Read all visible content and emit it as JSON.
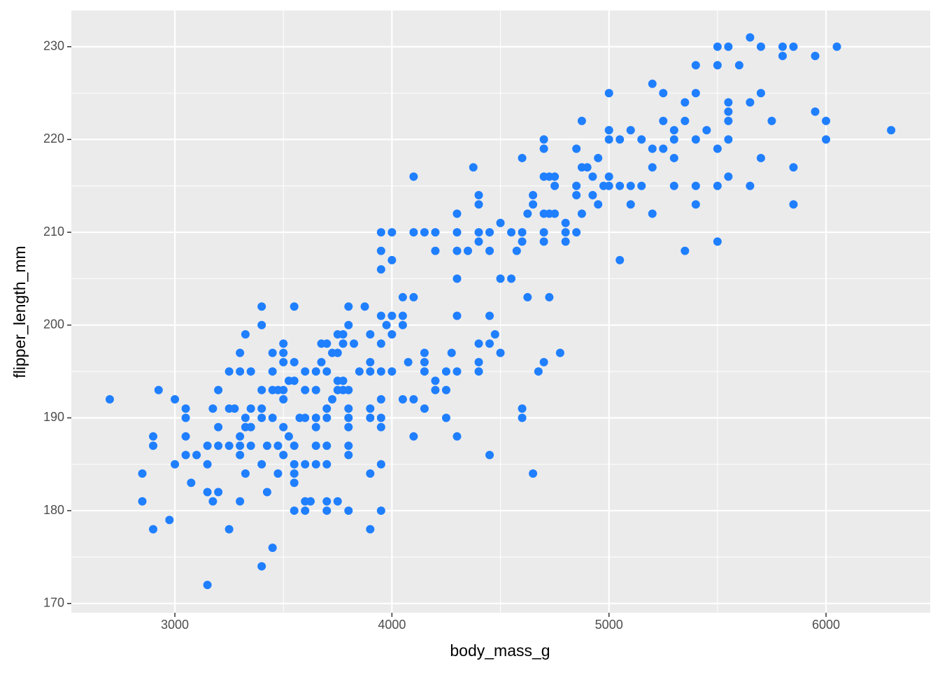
{
  "chart_data": {
    "type": "scatter",
    "xlabel": "body_mass_g",
    "ylabel": "flipper_length_mm",
    "color": "#1f7fff",
    "grid": true,
    "minor_grid": true,
    "background": "#ebebeb",
    "xlim": [
      2523,
      6480
    ],
    "ylim": [
      169.0,
      233.9
    ],
    "xticks": [
      3000,
      4000,
      5000,
      6000
    ],
    "yticks": [
      170,
      180,
      190,
      200,
      210,
      220,
      230
    ],
    "x": [
      2700,
      2850,
      2850,
      2900,
      2900,
      2900,
      2925,
      2975,
      3000,
      3000,
      3050,
      3050,
      3050,
      3050,
      3075,
      3100,
      3150,
      3150,
      3150,
      3150,
      3175,
      3175,
      3200,
      3200,
      3200,
      3200,
      3250,
      3250,
      3250,
      3250,
      3275,
      3300,
      3300,
      3300,
      3300,
      3300,
      3300,
      3325,
      3325,
      3325,
      3325,
      3350,
      3350,
      3350,
      3350,
      3400,
      3400,
      3400,
      3400,
      3400,
      3400,
      3400,
      3425,
      3425,
      3450,
      3450,
      3450,
      3450,
      3450,
      3475,
      3475,
      3475,
      3500,
      3500,
      3500,
      3500,
      3500,
      3500,
      3500,
      3525,
      3525,
      3550,
      3550,
      3550,
      3550,
      3550,
      3550,
      3550,
      3550,
      3575,
      3600,
      3600,
      3600,
      3600,
      3600,
      3600,
      3625,
      3650,
      3650,
      3650,
      3650,
      3650,
      3650,
      3675,
      3675,
      3700,
      3700,
      3700,
      3700,
      3700,
      3700,
      3700,
      3700,
      3725,
      3725,
      3750,
      3750,
      3750,
      3750,
      3750,
      3775,
      3775,
      3775,
      3775,
      3800,
      3800,
      3800,
      3800,
      3800,
      3800,
      3800,
      3800,
      3800,
      3825,
      3850,
      3875,
      3900,
      3900,
      3900,
      3900,
      3900,
      3900,
      3900,
      3950,
      3950,
      3950,
      3950,
      3950,
      3950,
      3950,
      3950,
      3950,
      3950,
      3950,
      3975,
      4000,
      4000,
      4000,
      4000,
      4000,
      4050,
      4050,
      4050,
      4050,
      4075,
      4100,
      4100,
      4100,
      4100,
      4100,
      4150,
      4150,
      4150,
      4150,
      4150,
      4200,
      4200,
      4200,
      4200,
      4250,
      4250,
      4250,
      4275,
      4300,
      4300,
      4300,
      4300,
      4300,
      4300,
      4300,
      4350,
      4375,
      4400,
      4400,
      4400,
      4400,
      4400,
      4400,
      4400,
      4450,
      4450,
      4450,
      4450,
      4450,
      4475,
      4500,
      4500,
      4500,
      4550,
      4550,
      4575,
      4600,
      4600,
      4600,
      4600,
      4600,
      4625,
      4625,
      4650,
      4650,
      4650,
      4675,
      4700,
      4700,
      4700,
      4700,
      4700,
      4700,
      4700,
      4725,
      4725,
      4725,
      4750,
      4750,
      4750,
      4775,
      4800,
      4800,
      4800,
      4850,
      4850,
      4850,
      4850,
      4875,
      4875,
      4875,
      4900,
      4925,
      4925,
      4950,
      4950,
      4975,
      5000,
      5000,
      5000,
      5000,
      5000,
      5050,
      5050,
      5050,
      5100,
      5100,
      5100,
      5150,
      5150,
      5200,
      5200,
      5200,
      5200,
      5250,
      5250,
      5250,
      5300,
      5300,
      5300,
      5300,
      5350,
      5350,
      5350,
      5400,
      5400,
      5400,
      5400,
      5400,
      5450,
      5500,
      5500,
      5500,
      5500,
      5500,
      5550,
      5550,
      5550,
      5550,
      5550,
      5550,
      5600,
      5650,
      5650,
      5650,
      5700,
      5700,
      5700,
      5750,
      5800,
      5800,
      5850,
      5850,
      5850,
      5950,
      5950,
      6000,
      6000,
      6050,
      6300
    ],
    "values": [
      192,
      184,
      181,
      188,
      187,
      178,
      193,
      179,
      192,
      185,
      191,
      190,
      188,
      186,
      183,
      186,
      187,
      185,
      182,
      172,
      191,
      181,
      193,
      189,
      187,
      182,
      195,
      191,
      187,
      178,
      191,
      197,
      195,
      188,
      187,
      186,
      181,
      199,
      190,
      189,
      184,
      195,
      191,
      189,
      187,
      202,
      200,
      193,
      191,
      190,
      185,
      174,
      187,
      182,
      197,
      195,
      193,
      190,
      176,
      193,
      187,
      184,
      198,
      197,
      196,
      193,
      192,
      189,
      186,
      194,
      188,
      202,
      196,
      194,
      187,
      185,
      184,
      183,
      180,
      190,
      195,
      193,
      190,
      185,
      181,
      180,
      181,
      195,
      193,
      190,
      189,
      187,
      185,
      198,
      196,
      198,
      195,
      191,
      190,
      187,
      185,
      181,
      180,
      197,
      192,
      199,
      197,
      194,
      193,
      181,
      199,
      198,
      194,
      193,
      202,
      200,
      193,
      191,
      190,
      189,
      187,
      186,
      180,
      198,
      195,
      202,
      199,
      196,
      195,
      191,
      190,
      184,
      178,
      210,
      208,
      206,
      201,
      198,
      195,
      192,
      190,
      189,
      185,
      180,
      200,
      210,
      207,
      201,
      199,
      195,
      203,
      201,
      200,
      192,
      196,
      216,
      210,
      203,
      192,
      188,
      210,
      197,
      196,
      195,
      191,
      210,
      208,
      194,
      193,
      195,
      193,
      190,
      197,
      212,
      210,
      208,
      205,
      201,
      195,
      188,
      208,
      217,
      214,
      213,
      210,
      209,
      198,
      196,
      195,
      210,
      208,
      201,
      198,
      186,
      199,
      211,
      205,
      197,
      210,
      205,
      208,
      218,
      210,
      209,
      191,
      190,
      203,
      212,
      214,
      213,
      184,
      195,
      220,
      219,
      216,
      212,
      210,
      209,
      196,
      216,
      212,
      203,
      216,
      215,
      212,
      197,
      211,
      210,
      209,
      219,
      215,
      214,
      210,
      222,
      217,
      212,
      217,
      216,
      214,
      218,
      213,
      215,
      225,
      221,
      220,
      216,
      215,
      220,
      215,
      207,
      221,
      215,
      213,
      220,
      215,
      226,
      219,
      217,
      212,
      225,
      222,
      219,
      221,
      220,
      218,
      215,
      224,
      222,
      208,
      228,
      225,
      220,
      215,
      213,
      221,
      230,
      228,
      219,
      215,
      209,
      230,
      224,
      223,
      222,
      220,
      216,
      228,
      231,
      224,
      215,
      230,
      225,
      218,
      222,
      230,
      229,
      230,
      217,
      213,
      229,
      223,
      222,
      220,
      230,
      221
    ]
  }
}
